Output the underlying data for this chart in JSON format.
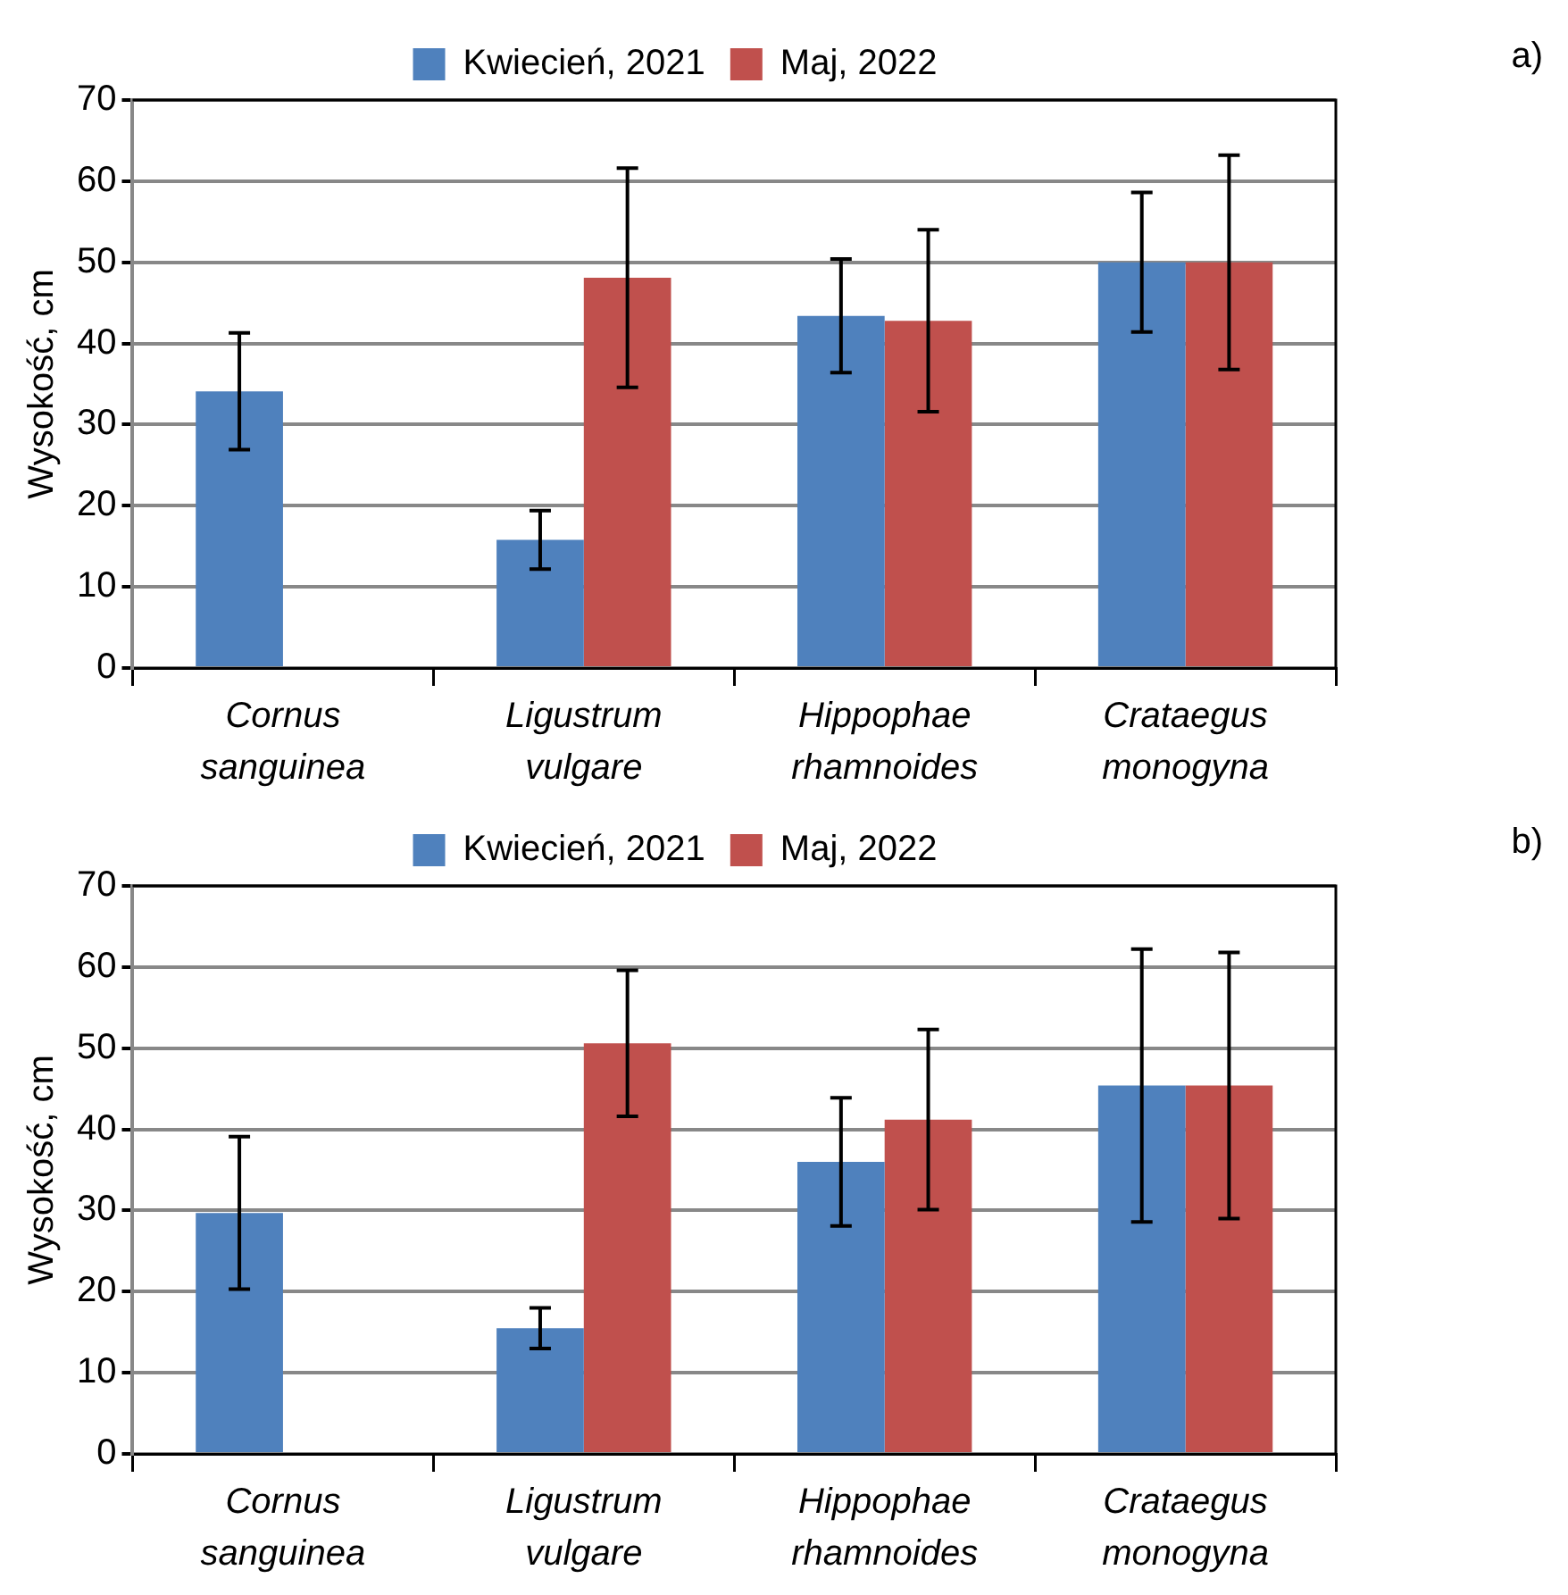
{
  "chart_data": [
    {
      "type": "bar",
      "ylabel": "Wysokość, cm",
      "categories": [
        "Cornus sanguinea",
        "Ligustrum vulgare",
        "Hippophae rhamnoides",
        "Crataegus monogyna"
      ],
      "series": [
        {
          "name": "Kwiecień, 2021",
          "color": "#4f81bd",
          "values": [
            34.1,
            15.8,
            43.4,
            50.0
          ],
          "errors": [
            7.2,
            3.6,
            7.0,
            8.6
          ]
        },
        {
          "name": "Maj, 2022",
          "color": "#c0504d",
          "values": [
            null,
            48.1,
            42.8,
            50.0
          ],
          "errors": [
            null,
            13.5,
            11.2,
            13.2
          ]
        }
      ],
      "ylim": [
        0,
        70
      ],
      "yticks": [
        0,
        10,
        20,
        30,
        40,
        50,
        60,
        70
      ],
      "grid": "y",
      "legend": "top",
      "annotations": [
        "a)"
      ]
    },
    {
      "type": "bar",
      "ylabel": "Wysokość, cm",
      "categories": [
        "Cornus sanguinea",
        "Ligustrum vulgare",
        "Hippophae rhamnoides",
        "Crataegus monogyna"
      ],
      "series": [
        {
          "name": "Kwiecień, 2021",
          "color": "#4f81bd",
          "values": [
            29.7,
            15.5,
            36.0,
            45.4
          ],
          "errors": [
            9.4,
            2.5,
            7.9,
            16.8
          ]
        },
        {
          "name": "Maj, 2022",
          "color": "#c0504d",
          "values": [
            null,
            50.6,
            41.2,
            45.4
          ],
          "errors": [
            null,
            9.0,
            11.1,
            16.4
          ]
        }
      ],
      "ylim": [
        0,
        70
      ],
      "yticks": [
        0,
        10,
        20,
        30,
        40,
        50,
        60,
        70
      ],
      "grid": "y",
      "legend": "top",
      "annotations": [
        "b)"
      ]
    }
  ]
}
